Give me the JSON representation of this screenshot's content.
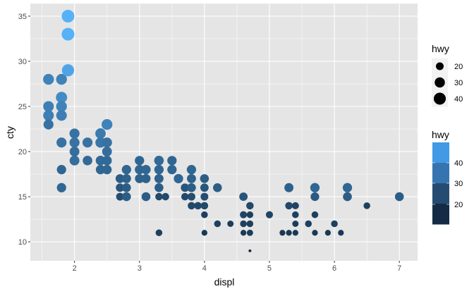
{
  "chart_data": {
    "type": "scatter",
    "title": "",
    "xlabel": "displ",
    "ylabel": "cty",
    "xlim": [
      1.32,
      7.28
    ],
    "ylim": [
      7.9,
      36.4
    ],
    "x_ticks": [
      2,
      3,
      4,
      5,
      6,
      7
    ],
    "y_ticks": [
      10,
      15,
      20,
      25,
      30,
      35
    ],
    "grid": true,
    "legend_placement": "right",
    "point_fields": [
      "displ",
      "cty",
      "hwy"
    ],
    "points": [
      [
        1.6,
        28,
        33
      ],
      [
        1.6,
        25,
        32
      ],
      [
        1.6,
        24,
        32
      ],
      [
        1.6,
        23,
        29
      ],
      [
        1.8,
        28,
        33
      ],
      [
        1.8,
        26,
        35
      ],
      [
        1.8,
        25,
        33
      ],
      [
        1.8,
        24,
        32
      ],
      [
        1.8,
        21,
        29
      ],
      [
        1.8,
        18,
        26
      ],
      [
        1.8,
        16,
        26
      ],
      [
        1.9,
        35,
        44
      ],
      [
        1.9,
        33,
        44
      ],
      [
        1.9,
        29,
        41
      ],
      [
        2.0,
        22,
        29
      ],
      [
        2.0,
        21,
        29
      ],
      [
        2.0,
        20,
        28
      ],
      [
        2.0,
        19,
        28
      ],
      [
        2.2,
        21,
        29
      ],
      [
        2.2,
        19,
        27
      ],
      [
        2.4,
        22,
        31
      ],
      [
        2.4,
        21,
        30
      ],
      [
        2.4,
        19,
        27
      ],
      [
        2.4,
        18,
        26
      ],
      [
        2.5,
        23,
        33
      ],
      [
        2.5,
        21,
        29
      ],
      [
        2.5,
        20,
        28
      ],
      [
        2.5,
        19,
        27
      ],
      [
        2.5,
        18,
        26
      ],
      [
        2.7,
        17,
        24
      ],
      [
        2.7,
        16,
        22
      ],
      [
        2.7,
        15,
        20
      ],
      [
        2.8,
        18,
        26
      ],
      [
        2.8,
        17,
        25
      ],
      [
        2.8,
        16,
        24
      ],
      [
        2.8,
        15,
        24
      ],
      [
        3.0,
        19,
        26
      ],
      [
        3.0,
        18,
        26
      ],
      [
        3.0,
        17,
        25
      ],
      [
        3.1,
        18,
        26
      ],
      [
        3.1,
        17,
        25
      ],
      [
        3.1,
        15,
        24
      ],
      [
        3.3,
        19,
        27
      ],
      [
        3.3,
        18,
        26
      ],
      [
        3.3,
        17,
        25
      ],
      [
        3.3,
        16,
        24
      ],
      [
        3.3,
        15,
        19
      ],
      [
        3.3,
        11,
        17
      ],
      [
        3.4,
        15,
        19
      ],
      [
        3.5,
        19,
        26
      ],
      [
        3.5,
        18,
        26
      ],
      [
        3.6,
        17,
        26
      ],
      [
        3.7,
        16,
        22
      ],
      [
        3.7,
        15,
        19
      ],
      [
        3.8,
        18,
        26
      ],
      [
        3.8,
        17,
        25
      ],
      [
        3.8,
        16,
        24
      ],
      [
        3.8,
        15,
        20
      ],
      [
        3.8,
        14,
        19
      ],
      [
        3.9,
        14,
        19
      ],
      [
        4.0,
        17,
        24
      ],
      [
        4.0,
        16,
        22
      ],
      [
        4.0,
        15,
        20
      ],
      [
        4.0,
        14,
        19
      ],
      [
        4.0,
        13,
        17
      ],
      [
        4.0,
        11,
        15
      ],
      [
        4.2,
        16,
        24
      ],
      [
        4.2,
        12,
        17
      ],
      [
        4.4,
        12,
        16
      ],
      [
        4.6,
        15,
        22
      ],
      [
        4.6,
        13,
        18
      ],
      [
        4.6,
        12,
        17
      ],
      [
        4.6,
        11,
        15
      ],
      [
        4.7,
        14,
        19
      ],
      [
        4.7,
        13,
        17
      ],
      [
        4.7,
        12,
        17
      ],
      [
        4.7,
        11,
        16
      ],
      [
        4.7,
        9,
        12
      ],
      [
        5.0,
        13,
        18
      ],
      [
        5.2,
        11,
        15
      ],
      [
        5.3,
        16,
        25
      ],
      [
        5.3,
        14,
        19
      ],
      [
        5.3,
        11,
        15
      ],
      [
        5.4,
        14,
        18
      ],
      [
        5.4,
        13,
        17
      ],
      [
        5.4,
        12,
        16
      ],
      [
        5.4,
        11,
        15
      ],
      [
        5.6,
        12,
        17
      ],
      [
        5.7,
        16,
        26
      ],
      [
        5.7,
        15,
        23
      ],
      [
        5.7,
        13,
        17
      ],
      [
        5.7,
        11,
        15
      ],
      [
        5.9,
        11,
        15
      ],
      [
        6.0,
        12,
        17
      ],
      [
        6.1,
        11,
        15
      ],
      [
        6.2,
        16,
        26
      ],
      [
        6.2,
        15,
        24
      ],
      [
        6.5,
        14,
        17
      ],
      [
        7.0,
        15,
        24
      ]
    ],
    "size_legend": {
      "title": "hwy",
      "breaks": [
        20,
        30,
        40
      ]
    },
    "color_legend": {
      "title": "hwy",
      "breaks": [
        20,
        30,
        40
      ],
      "low_color": "#132B43",
      "high_color": "#56B1F7",
      "band_colors": [
        "#4299E6",
        "#3674B0",
        "#254B72",
        "#152B45"
      ]
    },
    "hwy_range": [
      12,
      44
    ],
    "colors": {
      "panel": "#E5E5E5",
      "grid": "#FFFFFF",
      "tick_text": "#4D4D4D",
      "legend_key": "#F2F2F2"
    }
  }
}
